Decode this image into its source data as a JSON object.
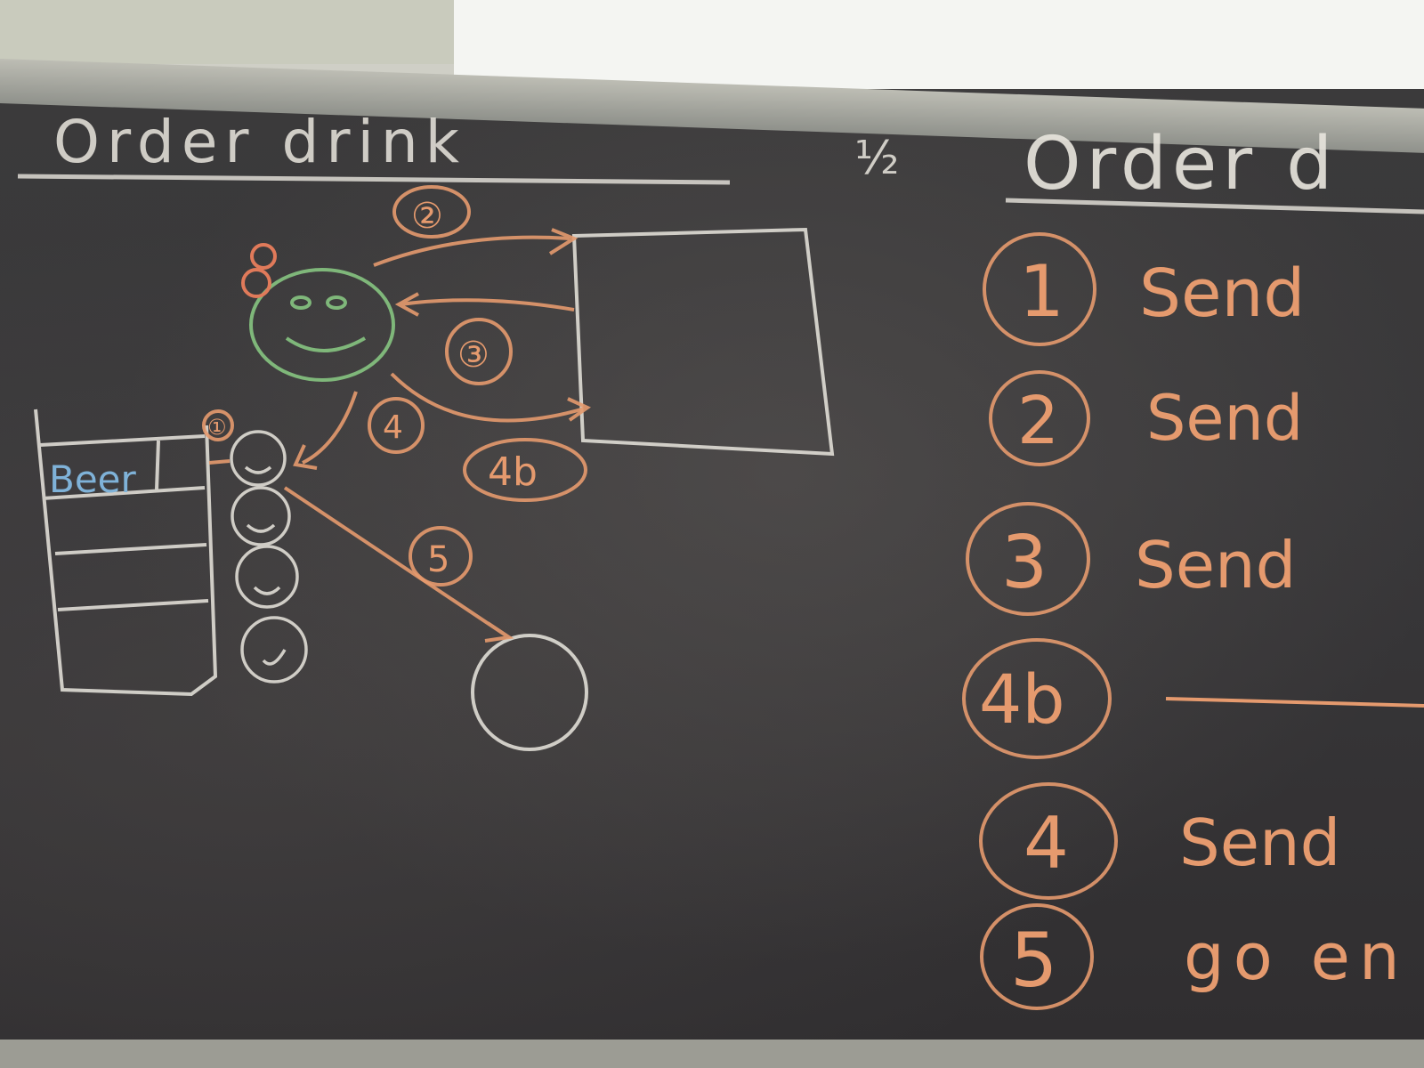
{
  "board": {
    "left_title": "Order drink",
    "half_mark": "½",
    "right_title": "Order d",
    "beer_label": "Beer",
    "diagram_numbers": [
      "①",
      "②",
      "③",
      "4",
      "4b",
      "5"
    ],
    "steps": [
      {
        "num": "1",
        "text": "Send"
      },
      {
        "num": "2",
        "text": "Send"
      },
      {
        "num": "3",
        "text": "Send"
      },
      {
        "num": "4b",
        "text": ""
      },
      {
        "num": "4",
        "text": "Send"
      },
      {
        "num": "5",
        "text": "go en"
      }
    ]
  },
  "colors": {
    "chalk_white": "#e9e6de",
    "chalk_orange": "#e59a6e",
    "chalk_green": "#7fb77a",
    "chalk_blue": "#7fb2d8",
    "board": "#39383a"
  }
}
